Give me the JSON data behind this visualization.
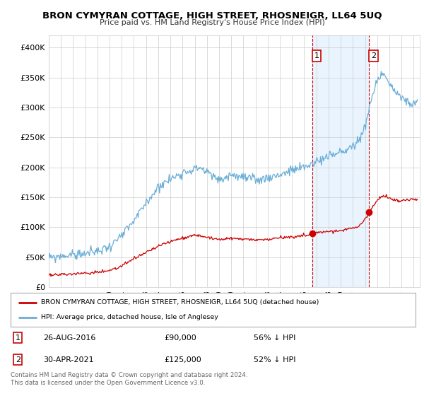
{
  "title": "BRON CYMYRAN COTTAGE, HIGH STREET, RHOSNEIGR, LL64 5UQ",
  "subtitle": "Price paid vs. HM Land Registry's House Price Index (HPI)",
  "hpi_color": "#6aaed6",
  "hpi_fill_color": "#ddeeff",
  "price_color": "#cc0000",
  "legend_label_price": "BRON CYMYRAN COTTAGE, HIGH STREET, RHOSNEIGR, LL64 5UQ (detached house)",
  "legend_label_hpi": "HPI: Average price, detached house, Isle of Anglesey",
  "t1_x": 2016.667,
  "t1_y": 90000,
  "t2_x": 2021.333,
  "t2_y": 125000,
  "transaction1_date": "26-AUG-2016",
  "transaction1_price": "£90,000",
  "transaction1_pct": "56% ↓ HPI",
  "transaction2_date": "30-APR-2021",
  "transaction2_price": "£125,000",
  "transaction2_pct": "52% ↓ HPI",
  "footer": "Contains HM Land Registry data © Crown copyright and database right 2024.\nThis data is licensed under the Open Government Licence v3.0.",
  "ylim": [
    0,
    420000
  ],
  "yticks": [
    0,
    50000,
    100000,
    150000,
    200000,
    250000,
    300000,
    350000,
    400000
  ],
  "xlim_start": 1995.0,
  "xlim_end": 2025.5,
  "background_color": "#ffffff"
}
